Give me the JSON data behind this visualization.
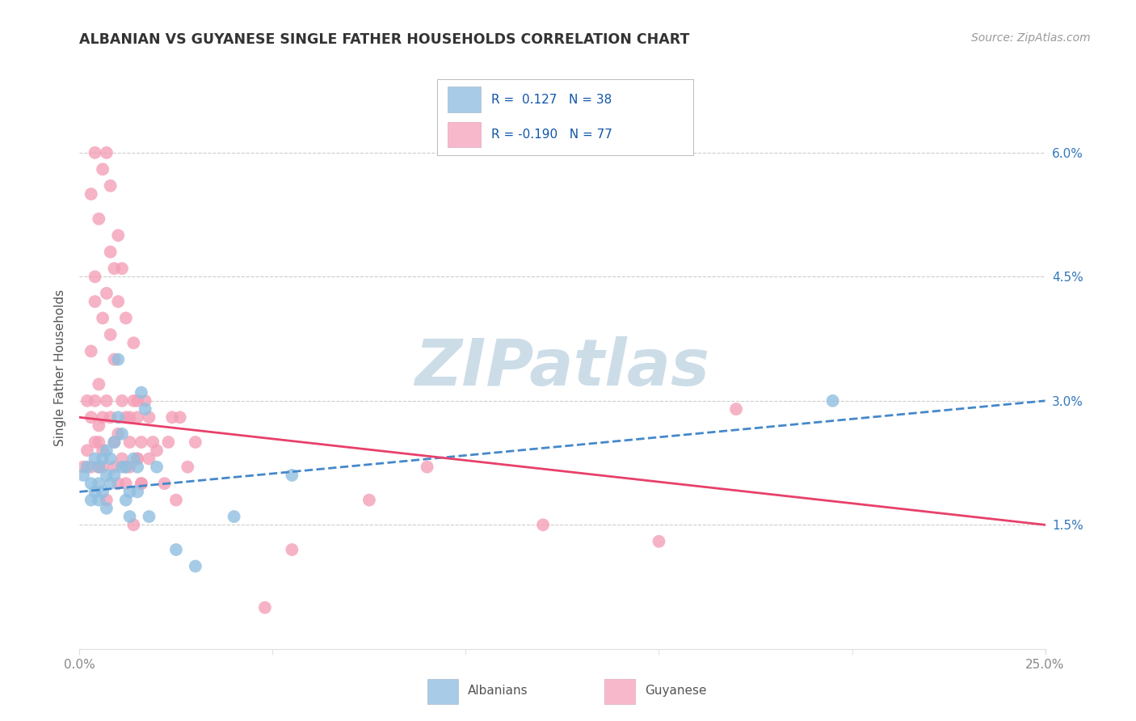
{
  "title": "ALBANIAN VS GUYANESE SINGLE FATHER HOUSEHOLDS CORRELATION CHART",
  "source": "Source: ZipAtlas.com",
  "ylabel": "Single Father Households",
  "ytick_labels": [
    "1.5%",
    "3.0%",
    "4.5%",
    "6.0%"
  ],
  "ytick_values": [
    0.015,
    0.03,
    0.045,
    0.06
  ],
  "xtick_labels": [
    "0.0%",
    "25.0%"
  ],
  "xtick_values": [
    0.0,
    0.25
  ],
  "xlim": [
    0.0,
    0.25
  ],
  "ylim": [
    0.0,
    0.068
  ],
  "albanian_color": "#90bfe0",
  "guyanese_color": "#f4a0b8",
  "trend_albanian_color": "#4488cc",
  "trend_guyanese_color": "#e8406a",
  "legend_fill_albanian": "#a8cce8",
  "legend_fill_guyanese": "#f8b8cc",
  "legend_text_color": "#1155aa",
  "watermark_color": "#ccdde8",
  "background_color": "#ffffff",
  "grid_color": "#cccccc",
  "title_color": "#333333",
  "source_color": "#999999",
  "axis_label_color": "#555555",
  "tick_color": "#888888",
  "right_tick_color": "#3377bb",
  "trend_albanian_start_y": 0.019,
  "trend_albanian_end_y": 0.03,
  "trend_guyanese_start_y": 0.028,
  "trend_guyanese_end_y": 0.015,
  "albanian_x": [
    0.001,
    0.002,
    0.003,
    0.003,
    0.004,
    0.004,
    0.005,
    0.005,
    0.005,
    0.006,
    0.006,
    0.007,
    0.007,
    0.007,
    0.008,
    0.008,
    0.009,
    0.009,
    0.01,
    0.01,
    0.011,
    0.011,
    0.012,
    0.012,
    0.013,
    0.013,
    0.014,
    0.015,
    0.015,
    0.016,
    0.017,
    0.018,
    0.02,
    0.025,
    0.03,
    0.04,
    0.055,
    0.195
  ],
  "albanian_y": [
    0.021,
    0.022,
    0.02,
    0.018,
    0.023,
    0.019,
    0.022,
    0.02,
    0.018,
    0.023,
    0.019,
    0.024,
    0.021,
    0.017,
    0.023,
    0.02,
    0.025,
    0.021,
    0.035,
    0.028,
    0.026,
    0.022,
    0.018,
    0.022,
    0.019,
    0.016,
    0.023,
    0.022,
    0.019,
    0.031,
    0.029,
    0.016,
    0.022,
    0.012,
    0.01,
    0.016,
    0.021,
    0.03
  ],
  "guyanese_x": [
    0.001,
    0.002,
    0.002,
    0.003,
    0.003,
    0.003,
    0.004,
    0.004,
    0.004,
    0.004,
    0.005,
    0.005,
    0.005,
    0.005,
    0.006,
    0.006,
    0.006,
    0.006,
    0.007,
    0.007,
    0.007,
    0.008,
    0.008,
    0.008,
    0.009,
    0.009,
    0.009,
    0.01,
    0.01,
    0.01,
    0.011,
    0.011,
    0.012,
    0.012,
    0.012,
    0.013,
    0.013,
    0.014,
    0.014,
    0.015,
    0.015,
    0.015,
    0.016,
    0.016,
    0.017,
    0.018,
    0.018,
    0.019,
    0.02,
    0.022,
    0.023,
    0.024,
    0.025,
    0.026,
    0.028,
    0.03,
    0.003,
    0.004,
    0.005,
    0.006,
    0.007,
    0.008,
    0.009,
    0.01,
    0.011,
    0.012,
    0.013,
    0.014,
    0.015,
    0.016,
    0.12,
    0.17,
    0.048,
    0.055,
    0.075,
    0.09,
    0.15
  ],
  "guyanese_y": [
    0.022,
    0.03,
    0.024,
    0.028,
    0.036,
    0.055,
    0.025,
    0.045,
    0.06,
    0.042,
    0.027,
    0.022,
    0.032,
    0.052,
    0.028,
    0.024,
    0.04,
    0.058,
    0.03,
    0.043,
    0.06,
    0.048,
    0.038,
    0.056,
    0.035,
    0.046,
    0.025,
    0.042,
    0.05,
    0.026,
    0.03,
    0.046,
    0.028,
    0.04,
    0.022,
    0.028,
    0.025,
    0.03,
    0.037,
    0.03,
    0.028,
    0.023,
    0.025,
    0.02,
    0.03,
    0.028,
    0.023,
    0.025,
    0.024,
    0.02,
    0.025,
    0.028,
    0.018,
    0.028,
    0.022,
    0.025,
    0.022,
    0.03,
    0.025,
    0.022,
    0.018,
    0.028,
    0.022,
    0.02,
    0.023,
    0.02,
    0.022,
    0.015,
    0.023,
    0.02,
    0.015,
    0.029,
    0.005,
    0.012,
    0.018,
    0.022,
    0.013
  ]
}
